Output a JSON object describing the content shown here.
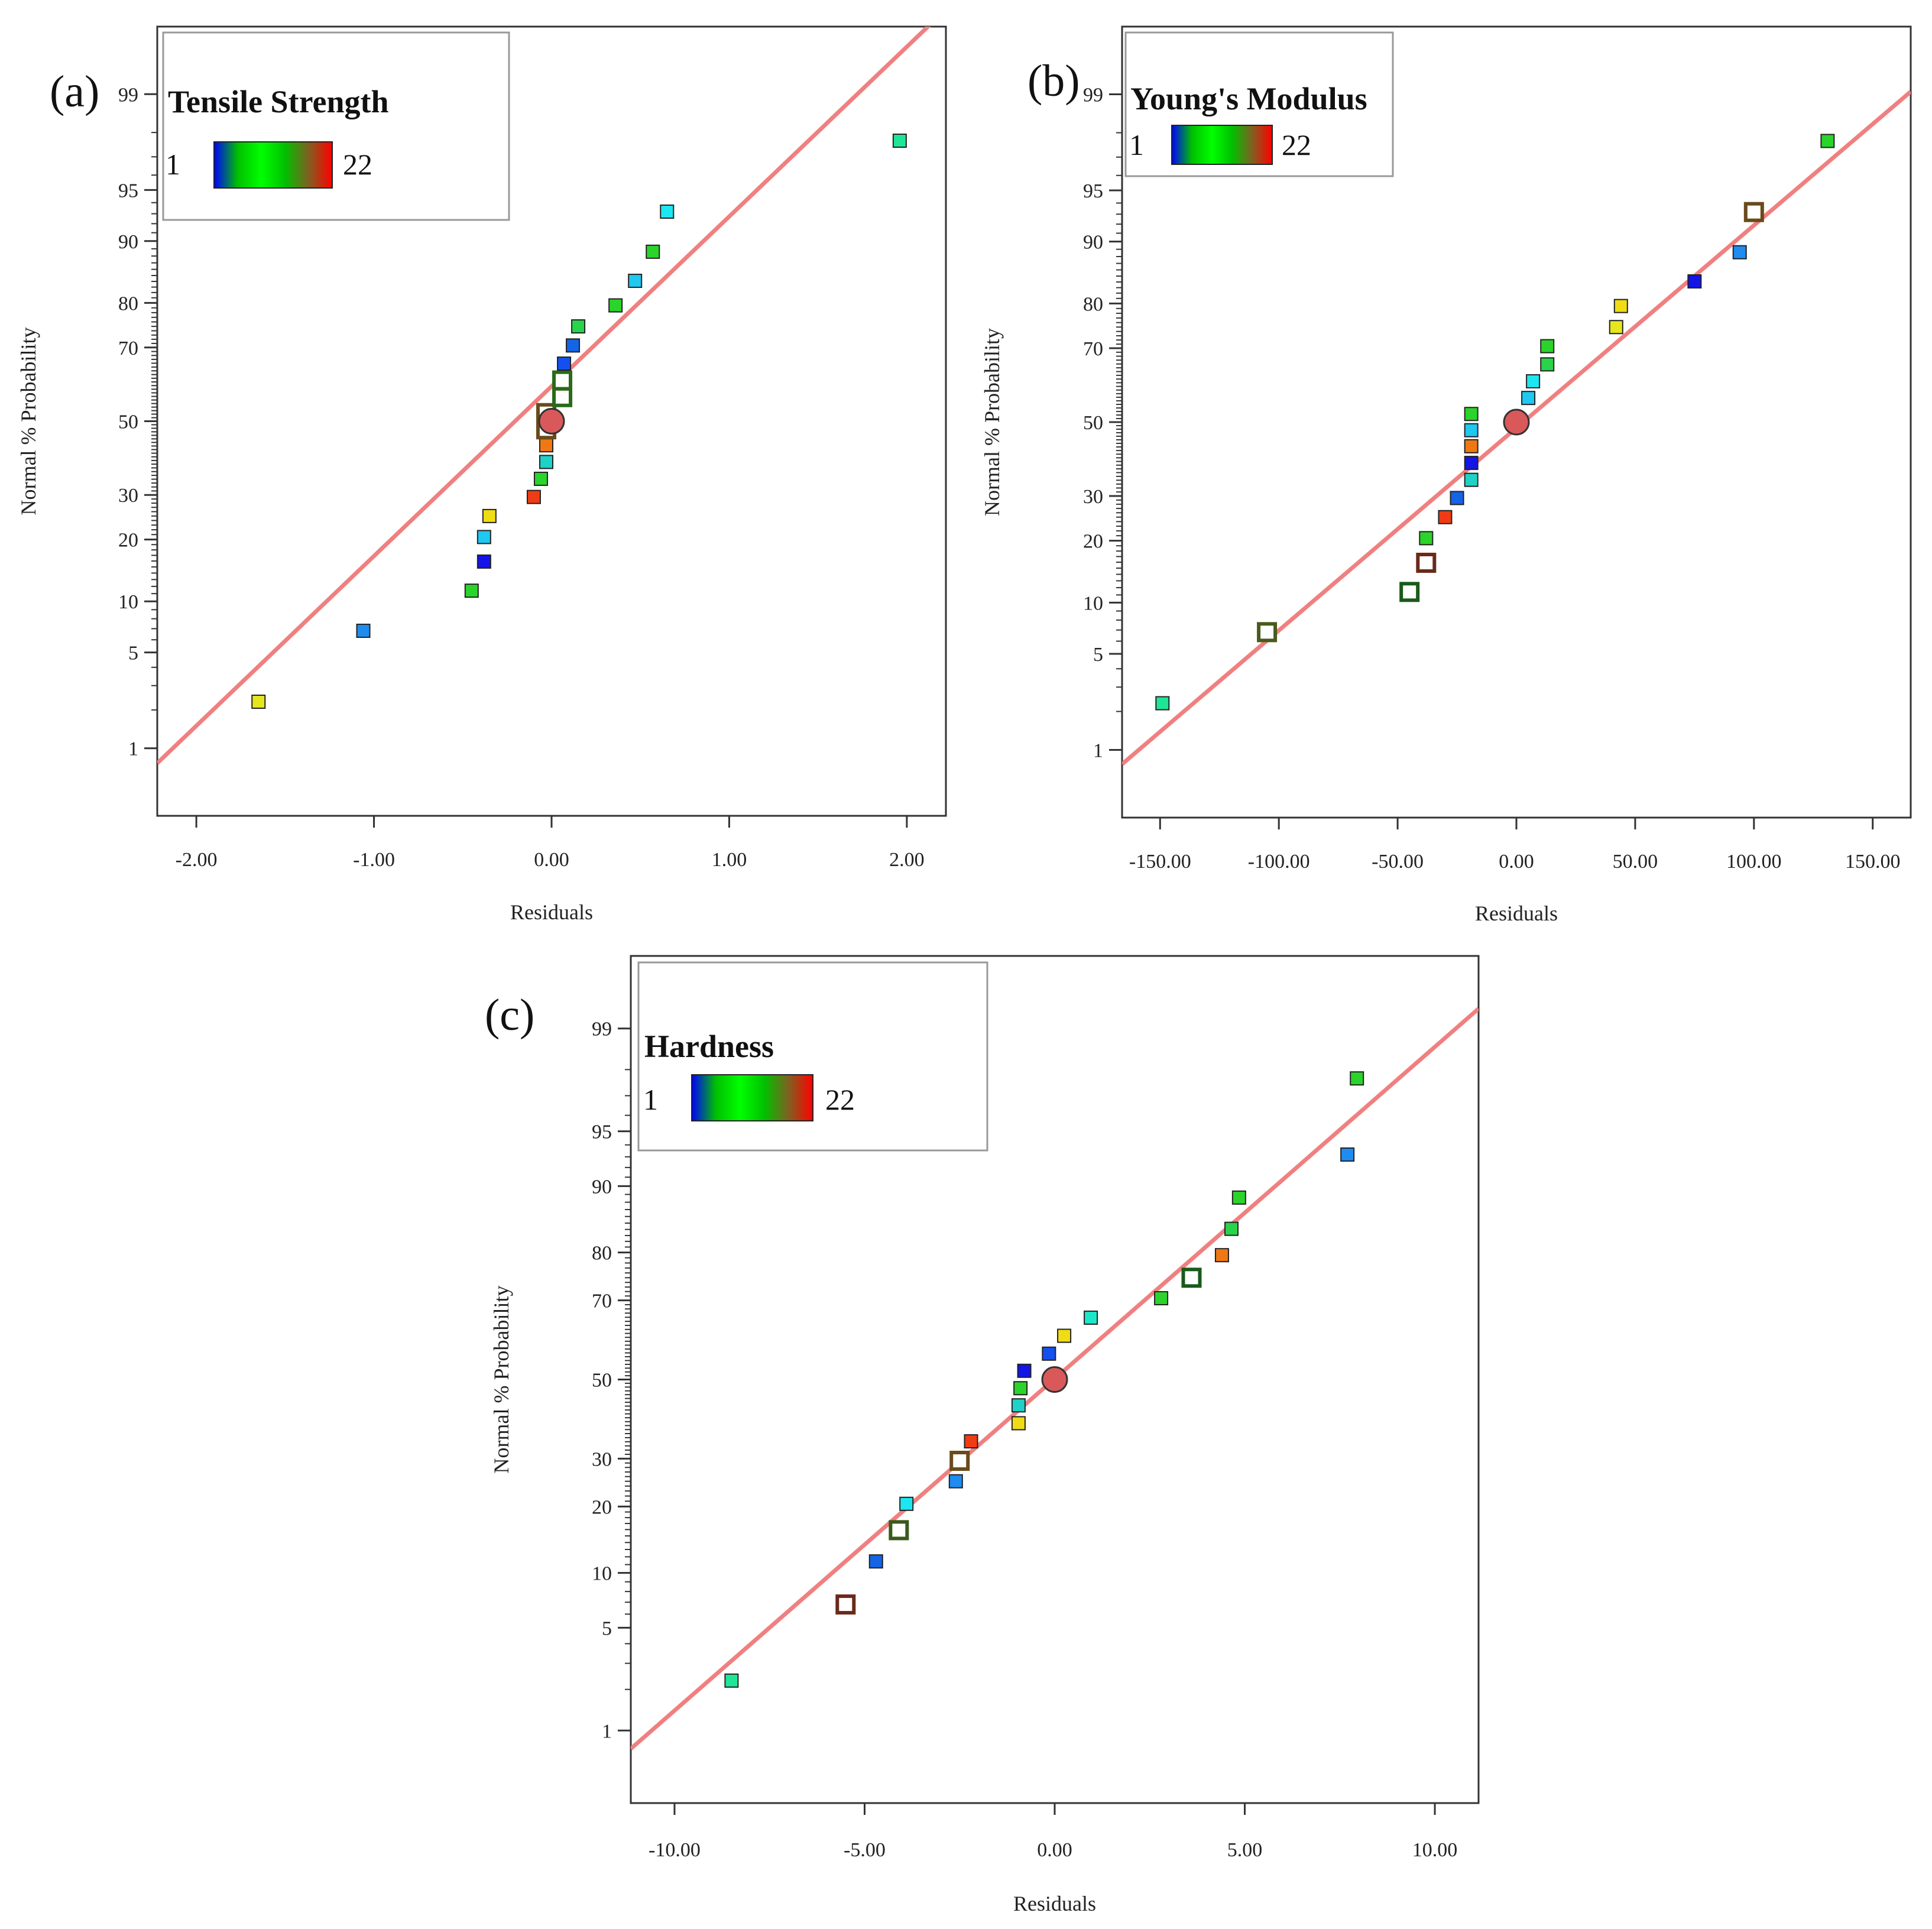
{
  "colors": {
    "fit_line": "#f08080",
    "frame": "#333333",
    "legend_border": "#999999",
    "design_point": "#d9595a",
    "gradient_stops": [
      "#0000ff",
      "#00c000",
      "#00ff00",
      "#00c000",
      "#806020",
      "#ff0000"
    ]
  },
  "chart_data": [
    {
      "type": "scatter",
      "panel_label": "(a)",
      "title": "Tensile Strength",
      "legend": {
        "min_label": "1",
        "max_label": "22"
      },
      "xlabel": "Residuals",
      "ylabel": "Normal % Probability",
      "xlim": [
        -2.22,
        2.22
      ],
      "x_ticks": [
        -2,
        -1,
        0,
        1,
        2
      ],
      "x_tick_labels": [
        "-2.00",
        "-1.00",
        "0.00",
        "1.00",
        "2.00"
      ],
      "y_ticks": [
        1,
        5,
        10,
        20,
        30,
        50,
        70,
        80,
        90,
        95,
        99
      ],
      "y_tick_labels": [
        "1",
        "5",
        "10",
        "20",
        "30",
        "50",
        "70",
        "80",
        "90",
        "95",
        "99"
      ],
      "line": {
        "from": [
          -2.22,
          0.75
        ],
        "to": [
          2.22,
          99.83
        ]
      },
      "points": [
        {
          "x": -1.65,
          "p": 2.3,
          "color": "#e6e61e",
          "shape": "square"
        },
        {
          "x": -1.06,
          "p": 6.8,
          "color": "#1e8cf0",
          "shape": "square"
        },
        {
          "x": -0.45,
          "p": 11.4,
          "color": "#2ad42a",
          "shape": "square"
        },
        {
          "x": -0.38,
          "p": 15.9,
          "color": "#1414e6",
          "shape": "square"
        },
        {
          "x": -0.38,
          "p": 20.5,
          "color": "#1ec8f0",
          "shape": "square"
        },
        {
          "x": -0.35,
          "p": 25.0,
          "color": "#f0dc14",
          "shape": "square"
        },
        {
          "x": -0.1,
          "p": 29.5,
          "color": "#f03c14",
          "shape": "square"
        },
        {
          "x": -0.06,
          "p": 34.1,
          "color": "#2ad42a",
          "shape": "square"
        },
        {
          "x": -0.03,
          "p": 38.6,
          "color": "#1ed2c8",
          "shape": "square"
        },
        {
          "x": -0.03,
          "p": 43.2,
          "color": "#f07814",
          "shape": "square"
        },
        {
          "x": -0.03,
          "p": 47.7,
          "color": "#ffffff",
          "edge": "#6a4a1a",
          "shape": "hollow"
        },
        {
          "x": -0.03,
          "p": 52.3,
          "color": "#ffffff",
          "edge": "#6a4a1a",
          "shape": "hollow"
        },
        {
          "x": 0.0,
          "p": 50.0,
          "color": "#d9595a",
          "shape": "circle"
        },
        {
          "x": 0.06,
          "p": 56.8,
          "color": "#ffffff",
          "edge": "#2a6a1a",
          "shape": "hollow"
        },
        {
          "x": 0.06,
          "p": 61.4,
          "color": "#ffffff",
          "edge": "#2a6a1a",
          "shape": "hollow"
        },
        {
          "x": 0.07,
          "p": 65.9,
          "color": "#1450f0",
          "shape": "square"
        },
        {
          "x": 0.12,
          "p": 70.5,
          "color": "#1464e6",
          "shape": "square"
        },
        {
          "x": 0.15,
          "p": 75.0,
          "color": "#2ad44a",
          "shape": "square"
        },
        {
          "x": 0.36,
          "p": 79.5,
          "color": "#2ad42a",
          "shape": "square"
        },
        {
          "x": 0.47,
          "p": 84.1,
          "color": "#1ec8f0",
          "shape": "square"
        },
        {
          "x": 0.57,
          "p": 88.6,
          "color": "#2ad42a",
          "shape": "square"
        },
        {
          "x": 0.65,
          "p": 93.2,
          "color": "#1ee6f0",
          "shape": "square"
        },
        {
          "x": 1.96,
          "p": 97.7,
          "color": "#1ee696",
          "shape": "square"
        }
      ]
    },
    {
      "type": "scatter",
      "panel_label": "(b)",
      "title": "Young's Modulus",
      "legend": {
        "min_label": "1",
        "max_label": "22"
      },
      "xlabel": "Residuals",
      "ylabel": "Normal % Probability",
      "xlim": [
        -166,
        166
      ],
      "x_ticks": [
        -150,
        -100,
        -50,
        0,
        50,
        100,
        150
      ],
      "x_tick_labels": [
        "-150.00",
        "-100.00",
        "-50.00",
        "0.00",
        "50.00",
        "100.00",
        "150.00"
      ],
      "y_ticks": [
        1,
        5,
        10,
        20,
        30,
        50,
        70,
        80,
        90,
        95,
        99
      ],
      "y_tick_labels": [
        "1",
        "5",
        "10",
        "20",
        "30",
        "50",
        "70",
        "80",
        "90",
        "95",
        "99"
      ],
      "line": {
        "from": [
          -166,
          0.76
        ],
        "to": [
          166,
          99.05
        ]
      },
      "points": [
        {
          "x": -149,
          "p": 2.3,
          "color": "#1ee696",
          "shape": "square"
        },
        {
          "x": -105,
          "p": 6.8,
          "color": "#ffffff",
          "edge": "#4a5a1a",
          "shape": "hollow"
        },
        {
          "x": -45,
          "p": 11.4,
          "color": "#ffffff",
          "edge": "#1a5a1a",
          "shape": "hollow"
        },
        {
          "x": -38,
          "p": 15.9,
          "color": "#ffffff",
          "edge": "#6a2a1a",
          "shape": "hollow"
        },
        {
          "x": -38,
          "p": 20.5,
          "color": "#2ad42a",
          "shape": "square"
        },
        {
          "x": -30,
          "p": 25.0,
          "color": "#f03c14",
          "shape": "square"
        },
        {
          "x": -25,
          "p": 29.5,
          "color": "#1464e6",
          "shape": "square"
        },
        {
          "x": -19,
          "p": 34.1,
          "color": "#1ed2c8",
          "shape": "square"
        },
        {
          "x": -19,
          "p": 38.6,
          "color": "#1414e6",
          "shape": "square"
        },
        {
          "x": -19,
          "p": 43.2,
          "color": "#f07814",
          "shape": "square"
        },
        {
          "x": -19,
          "p": 47.7,
          "color": "#1ec8f0",
          "shape": "square"
        },
        {
          "x": -19,
          "p": 52.3,
          "color": "#2ad42a",
          "shape": "square"
        },
        {
          "x": 0,
          "p": 50.0,
          "color": "#d9595a",
          "shape": "circle"
        },
        {
          "x": 5,
          "p": 56.8,
          "color": "#1ec8f0",
          "shape": "square"
        },
        {
          "x": 7,
          "p": 61.4,
          "color": "#1ee6f0",
          "shape": "square"
        },
        {
          "x": 13,
          "p": 65.9,
          "color": "#2ad44a",
          "shape": "square"
        },
        {
          "x": 13,
          "p": 70.5,
          "color": "#2ad42a",
          "shape": "square"
        },
        {
          "x": 42,
          "p": 75.0,
          "color": "#e6e61e",
          "shape": "square"
        },
        {
          "x": 44,
          "p": 79.5,
          "color": "#f0dc14",
          "shape": "square"
        },
        {
          "x": 75,
          "p": 84.1,
          "color": "#1414e6",
          "shape": "square"
        },
        {
          "x": 94,
          "p": 88.6,
          "color": "#1e8cf0",
          "shape": "square"
        },
        {
          "x": 100,
          "p": 93.2,
          "color": "#ffffff",
          "edge": "#6a4a1a",
          "shape": "hollow"
        },
        {
          "x": 131,
          "p": 97.7,
          "color": "#2ad42a",
          "shape": "square"
        }
      ]
    },
    {
      "type": "scatter",
      "panel_label": "(c)",
      "title": "Hardness",
      "legend": {
        "min_label": "1",
        "max_label": "22"
      },
      "xlabel": "Residuals",
      "ylabel": "Normal % Probability",
      "xlim": [
        -11.15,
        11.15
      ],
      "x_ticks": [
        -10,
        -5,
        0,
        5,
        10
      ],
      "x_tick_labels": [
        "-10.00",
        "-5.00",
        "0.00",
        "5.00",
        "10.00"
      ],
      "y_ticks": [
        1,
        5,
        10,
        20,
        30,
        50,
        70,
        80,
        90,
        95,
        99
      ],
      "y_tick_labels": [
        "1",
        "5",
        "10",
        "20",
        "30",
        "50",
        "70",
        "80",
        "90",
        "95",
        "99"
      ],
      "line": {
        "from": [
          -11.15,
          0.72
        ],
        "to": [
          11.15,
          99.3
        ]
      },
      "points": [
        {
          "x": -8.5,
          "p": 2.3,
          "color": "#1ee696",
          "shape": "square"
        },
        {
          "x": -5.5,
          "p": 6.8,
          "color": "#ffffff",
          "edge": "#6a2a1a",
          "shape": "hollow"
        },
        {
          "x": -4.7,
          "p": 11.4,
          "color": "#1464e6",
          "shape": "square"
        },
        {
          "x": -4.1,
          "p": 15.9,
          "color": "#ffffff",
          "edge": "#3a5a1a",
          "shape": "hollow"
        },
        {
          "x": -3.9,
          "p": 20.5,
          "color": "#1ee6f0",
          "shape": "square"
        },
        {
          "x": -2.6,
          "p": 25.0,
          "color": "#1e8cf0",
          "shape": "square"
        },
        {
          "x": -2.5,
          "p": 29.5,
          "color": "#ffffff",
          "edge": "#6a4a1a",
          "shape": "hollow"
        },
        {
          "x": -2.2,
          "p": 34.1,
          "color": "#f03c14",
          "shape": "square"
        },
        {
          "x": -0.95,
          "p": 38.6,
          "color": "#f0dc14",
          "shape": "square"
        },
        {
          "x": -0.95,
          "p": 43.2,
          "color": "#1ed2c8",
          "shape": "square"
        },
        {
          "x": -0.9,
          "p": 47.7,
          "color": "#2ad42a",
          "shape": "square"
        },
        {
          "x": -0.8,
          "p": 52.3,
          "color": "#1414e6",
          "shape": "square"
        },
        {
          "x": 0.0,
          "p": 50.0,
          "color": "#d9595a",
          "shape": "circle"
        },
        {
          "x": -0.15,
          "p": 56.8,
          "color": "#1450f0",
          "shape": "square"
        },
        {
          "x": 0.25,
          "p": 61.4,
          "color": "#f0dc14",
          "shape": "square"
        },
        {
          "x": 0.95,
          "p": 65.9,
          "color": "#1ee6c8",
          "shape": "square"
        },
        {
          "x": 2.8,
          "p": 70.5,
          "color": "#2ad42a",
          "shape": "square"
        },
        {
          "x": 3.6,
          "p": 75.0,
          "color": "#ffffff",
          "edge": "#1a5a1a",
          "shape": "hollow"
        },
        {
          "x": 4.4,
          "p": 79.5,
          "color": "#f07814",
          "shape": "square"
        },
        {
          "x": 4.65,
          "p": 84.1,
          "color": "#2ad44a",
          "shape": "square"
        },
        {
          "x": 4.85,
          "p": 88.6,
          "color": "#2ad42a",
          "shape": "square"
        },
        {
          "x": 7.7,
          "p": 93.2,
          "color": "#1e8cf0",
          "shape": "square"
        },
        {
          "x": 7.95,
          "p": 97.7,
          "color": "#2ad42a",
          "shape": "square"
        }
      ]
    }
  ]
}
